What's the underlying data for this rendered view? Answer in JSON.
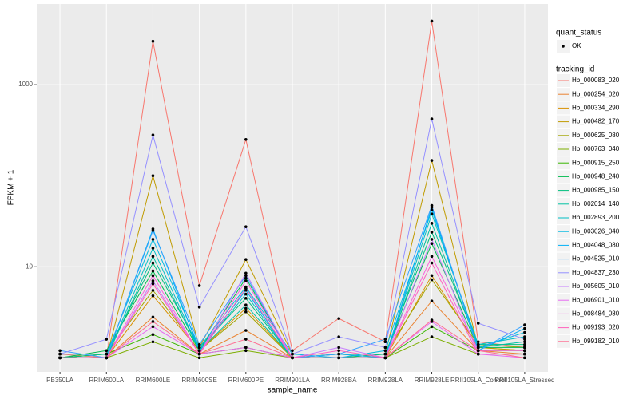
{
  "chart_data": {
    "type": "line",
    "x_label": "sample_name",
    "y_label": "FPKM + 1",
    "log_y": true,
    "grid": true,
    "categories": [
      "PB350LA",
      "RRIM600LA",
      "RRIM600LE",
      "RRIM600SE",
      "RRIM600PE",
      "RRIM901LA",
      "RRIM928BA",
      "RRIM928LA",
      "RRIM928LE",
      "RRII105LA_Control",
      "RRII105LA_Stressed"
    ],
    "ylim": [
      0.7,
      7700
    ],
    "yticks": [
      10,
      1000
    ],
    "point_legend_title": "quant_status",
    "point_legend_label": "OK",
    "point_color": "#000000",
    "legend_title": "tracking_id",
    "series": [
      {
        "name": "Hb_000083_020",
        "color": "#F8766D",
        "values": [
          1.1,
          1.0,
          3000,
          6.2,
          250,
          1.2,
          2.7,
          1.5,
          5000,
          1.5,
          1.3
        ]
      },
      {
        "name": "Hb_000254_020",
        "color": "#EA8331",
        "values": [
          1.0,
          1.0,
          2.8,
          1.1,
          2.0,
          1.0,
          1.0,
          1.0,
          4.2,
          1.2,
          1.1
        ]
      },
      {
        "name": "Hb_000334_290",
        "color": "#D89000",
        "values": [
          1.0,
          1.0,
          4.8,
          1.2,
          3.5,
          1.0,
          1.1,
          1.0,
          8.0,
          1.3,
          1.2
        ]
      },
      {
        "name": "Hb_000482_170",
        "color": "#C09B00",
        "values": [
          1.0,
          1.0,
          100,
          1.3,
          12,
          1.1,
          1.1,
          1.1,
          147,
          1.3,
          1.2
        ]
      },
      {
        "name": "Hb_000625_080",
        "color": "#A3A500",
        "values": [
          1.0,
          1.1,
          5.5,
          1.2,
          3.2,
          1.0,
          1.0,
          1.1,
          7.2,
          1.4,
          1.3
        ]
      },
      {
        "name": "Hb_000763_040",
        "color": "#7CAE00",
        "values": [
          1.0,
          1.0,
          1.5,
          1.0,
          1.2,
          1.0,
          1.0,
          1.0,
          1.7,
          1.1,
          1.1
        ]
      },
      {
        "name": "Hb_000915_250",
        "color": "#39B600",
        "values": [
          1.0,
          1.1,
          1.8,
          1.1,
          1.3,
          1.0,
          1.0,
          1.0,
          2.2,
          1.2,
          1.2
        ]
      },
      {
        "name": "Hb_000948_240",
        "color": "#00BB4E",
        "values": [
          1.0,
          1.2,
          9.0,
          1.2,
          7.5,
          1.0,
          1.1,
          1.1,
          18,
          1.3,
          1.3
        ]
      },
      {
        "name": "Hb_000985_150",
        "color": "#00BF7D",
        "values": [
          1.0,
          1.1,
          11,
          1.3,
          4.5,
          1.0,
          1.0,
          1.1,
          24,
          1.4,
          1.4
        ]
      },
      {
        "name": "Hb_002014_140",
        "color": "#00C1A3",
        "values": [
          1.0,
          1.0,
          13,
          1.2,
          3.8,
          1.0,
          1.0,
          1.0,
          30,
          1.3,
          1.5
        ]
      },
      {
        "name": "Hb_002893_200",
        "color": "#00BFC4",
        "values": [
          1.0,
          1.0,
          16,
          1.2,
          5.0,
          1.0,
          1.0,
          1.0,
          38,
          1.4,
          1.7
        ]
      },
      {
        "name": "Hb_003026_040",
        "color": "#00BAE0",
        "values": [
          1.1,
          1.1,
          20,
          1.3,
          6.0,
          1.1,
          1.0,
          1.2,
          42,
          1.3,
          1.9
        ]
      },
      {
        "name": "Hb_004048_080",
        "color": "#00B0F6",
        "values": [
          1.0,
          1.0,
          26,
          1.2,
          5.5,
          1.0,
          1.1,
          1.0,
          45,
          1.2,
          2.1
        ]
      },
      {
        "name": "Hb_004525_010",
        "color": "#35A2FF",
        "values": [
          1.2,
          1.0,
          25,
          1.4,
          8.0,
          1.0,
          1.1,
          1.6,
          47,
          1.2,
          2.3
        ]
      },
      {
        "name": "Hb_004837_230",
        "color": "#9590FF",
        "values": [
          1.1,
          1.6,
          280,
          3.6,
          27.5,
          1.1,
          1.7,
          1.3,
          420,
          2.4,
          1.6
        ]
      },
      {
        "name": "Hb_005605_010",
        "color": "#C77CFF",
        "values": [
          1.0,
          1.0,
          7.0,
          1.1,
          8.5,
          1.0,
          1.3,
          1.0,
          20,
          1.1,
          1.1
        ]
      },
      {
        "name": "Hb_006901_010",
        "color": "#E76BF3",
        "values": [
          1.0,
          1.0,
          2.2,
          1.1,
          1.3,
          1.0,
          1.0,
          1.0,
          2.5,
          1.1,
          1.0
        ]
      },
      {
        "name": "Hb_008484_080",
        "color": "#FA62DB",
        "values": [
          1.0,
          1.0,
          8.0,
          1.1,
          7.0,
          1.0,
          1.0,
          1.0,
          13,
          1.2,
          1.2
        ]
      },
      {
        "name": "Hb_009193_020",
        "color": "#FF62BC",
        "values": [
          1.0,
          1.0,
          6.5,
          1.1,
          5.8,
          1.0,
          1.2,
          1.0,
          11,
          1.1,
          1.1
        ]
      },
      {
        "name": "Hb_099182_010",
        "color": "#FF6C91",
        "values": [
          1.0,
          1.0,
          2.5,
          1.1,
          1.6,
          1.0,
          1.0,
          1.0,
          2.6,
          1.2,
          1.0
        ]
      }
    ]
  }
}
